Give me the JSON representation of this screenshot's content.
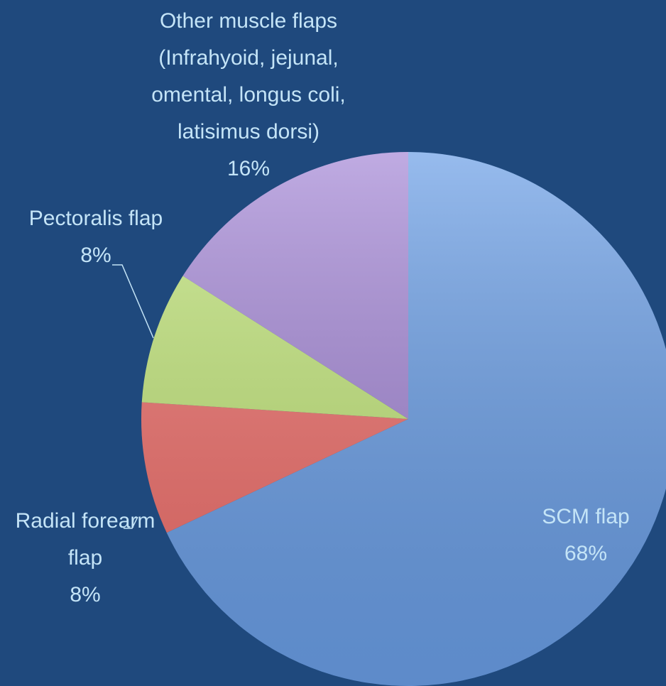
{
  "chart_data": {
    "type": "pie",
    "categories": [
      "SCM flap",
      "Radial forearm flap",
      "Pectoralis flap",
      "Other muscle flaps (Infrahyoid, jejunal, omental, longus coli, latisimus dorsi)"
    ],
    "values": [
      68,
      8,
      8,
      16
    ],
    "value_labels": [
      "68%",
      "8%",
      "8%",
      "16%"
    ],
    "colors": [
      "#6a9ee6",
      "#ef6f6b",
      "#c2e67a",
      "#a487d6"
    ]
  }
}
